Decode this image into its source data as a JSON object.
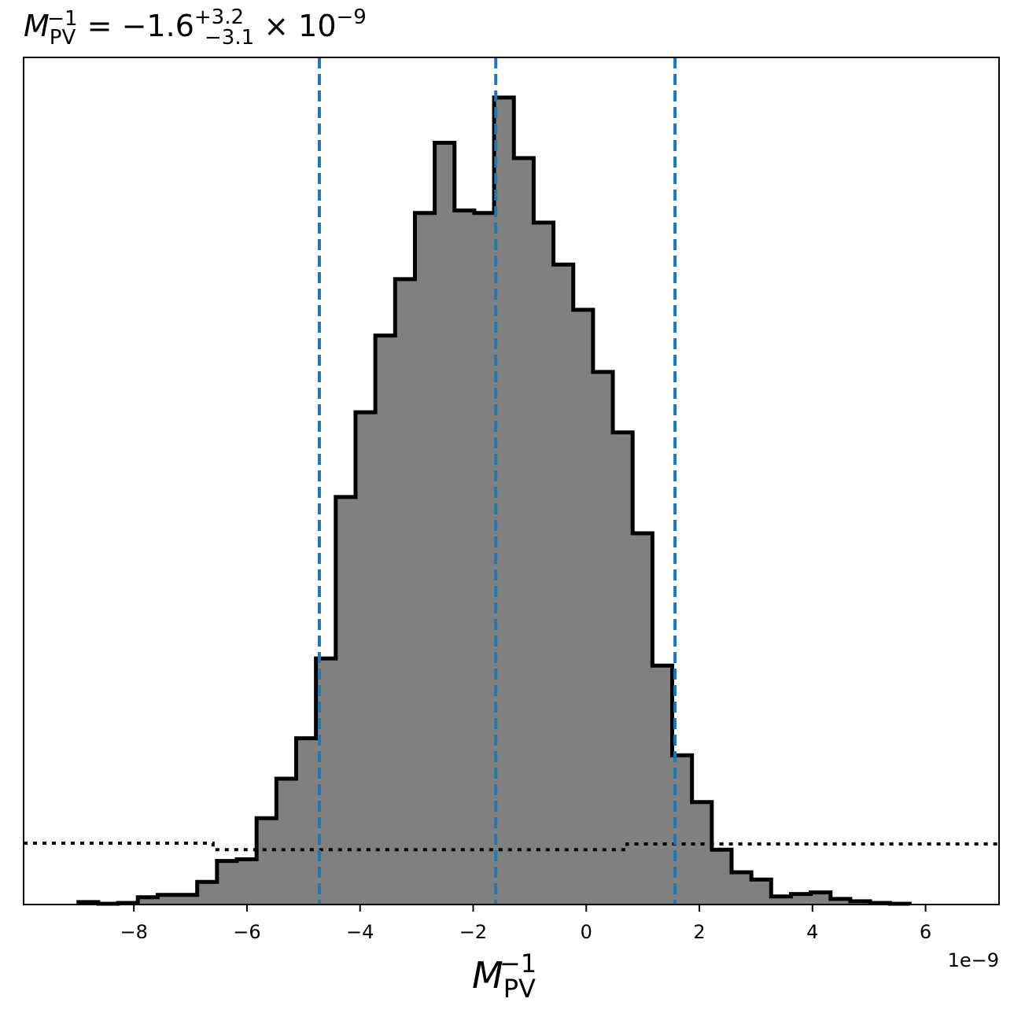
{
  "chart_data": {
    "type": "histogram",
    "title": {
      "symbol": "M",
      "sub": "PV",
      "sup": "−1",
      "equals": " = −1.6",
      "upper_err": "+3.2",
      "lower_err": "−3.1",
      "multiplier": " × 10",
      "exponent": "−9"
    },
    "xlabel": {
      "symbol": "M",
      "sub": "PV",
      "sup": "−1"
    },
    "x_offset_label": "1e−9",
    "x_ticks": [
      {
        "value": -8,
        "label": "−8"
      },
      {
        "value": -6,
        "label": "−6"
      },
      {
        "value": -4,
        "label": "−4"
      },
      {
        "value": -2,
        "label": "−2"
      },
      {
        "value": 0,
        "label": "0"
      },
      {
        "value": 2,
        "label": "2"
      },
      {
        "value": 4,
        "label": "4"
      },
      {
        "value": 6,
        "label": "6"
      }
    ],
    "xlim": [
      -9.95,
      7.3
    ],
    "ylim": [
      0,
      1.05
    ],
    "bin_edges": [
      -8.98,
      -8.63,
      -8.28,
      -7.93,
      -7.58,
      -7.23,
      -6.88,
      -6.53,
      -6.18,
      -5.83,
      -5.48,
      -5.13,
      -4.78,
      -4.43,
      -4.08,
      -3.73,
      -3.38,
      -3.03,
      -2.68,
      -2.33,
      -1.98,
      -1.63,
      -1.28,
      -0.93,
      -0.58,
      -0.23,
      0.12,
      0.47,
      0.82,
      1.17,
      1.52,
      1.87,
      2.22,
      2.57,
      2.92,
      3.27,
      3.62,
      3.97,
      4.32,
      4.67,
      5.02,
      5.37,
      5.72
    ],
    "counts": [
      0.003,
      0.001,
      0.002,
      0.009,
      0.012,
      0.012,
      0.028,
      0.054,
      0.056,
      0.107,
      0.156,
      0.206,
      0.305,
      0.505,
      0.61,
      0.705,
      0.775,
      0.857,
      0.944,
      0.86,
      0.857,
      1.0,
      0.925,
      0.845,
      0.793,
      0.737,
      0.66,
      0.585,
      0.46,
      0.296,
      0.185,
      0.127,
      0.068,
      0.04,
      0.031,
      0.01,
      0.013,
      0.015,
      0.007,
      0.004,
      0.002,
      0.001
    ],
    "quantile_lines": [
      -4.72,
      -1.6,
      1.57
    ],
    "prior_line": [
      {
        "x": -9.95,
        "y": 0.076
      },
      {
        "x": -6.6,
        "y": 0.076
      },
      {
        "x": -6.6,
        "y": 0.068
      },
      {
        "x": 0.72,
        "y": 0.068
      },
      {
        "x": 0.72,
        "y": 0.075
      },
      {
        "x": 7.3,
        "y": 0.075
      }
    ],
    "colors": {
      "fill": "#808080",
      "outline": "#000000",
      "quantile": "#1f77b4"
    },
    "grid": false
  }
}
